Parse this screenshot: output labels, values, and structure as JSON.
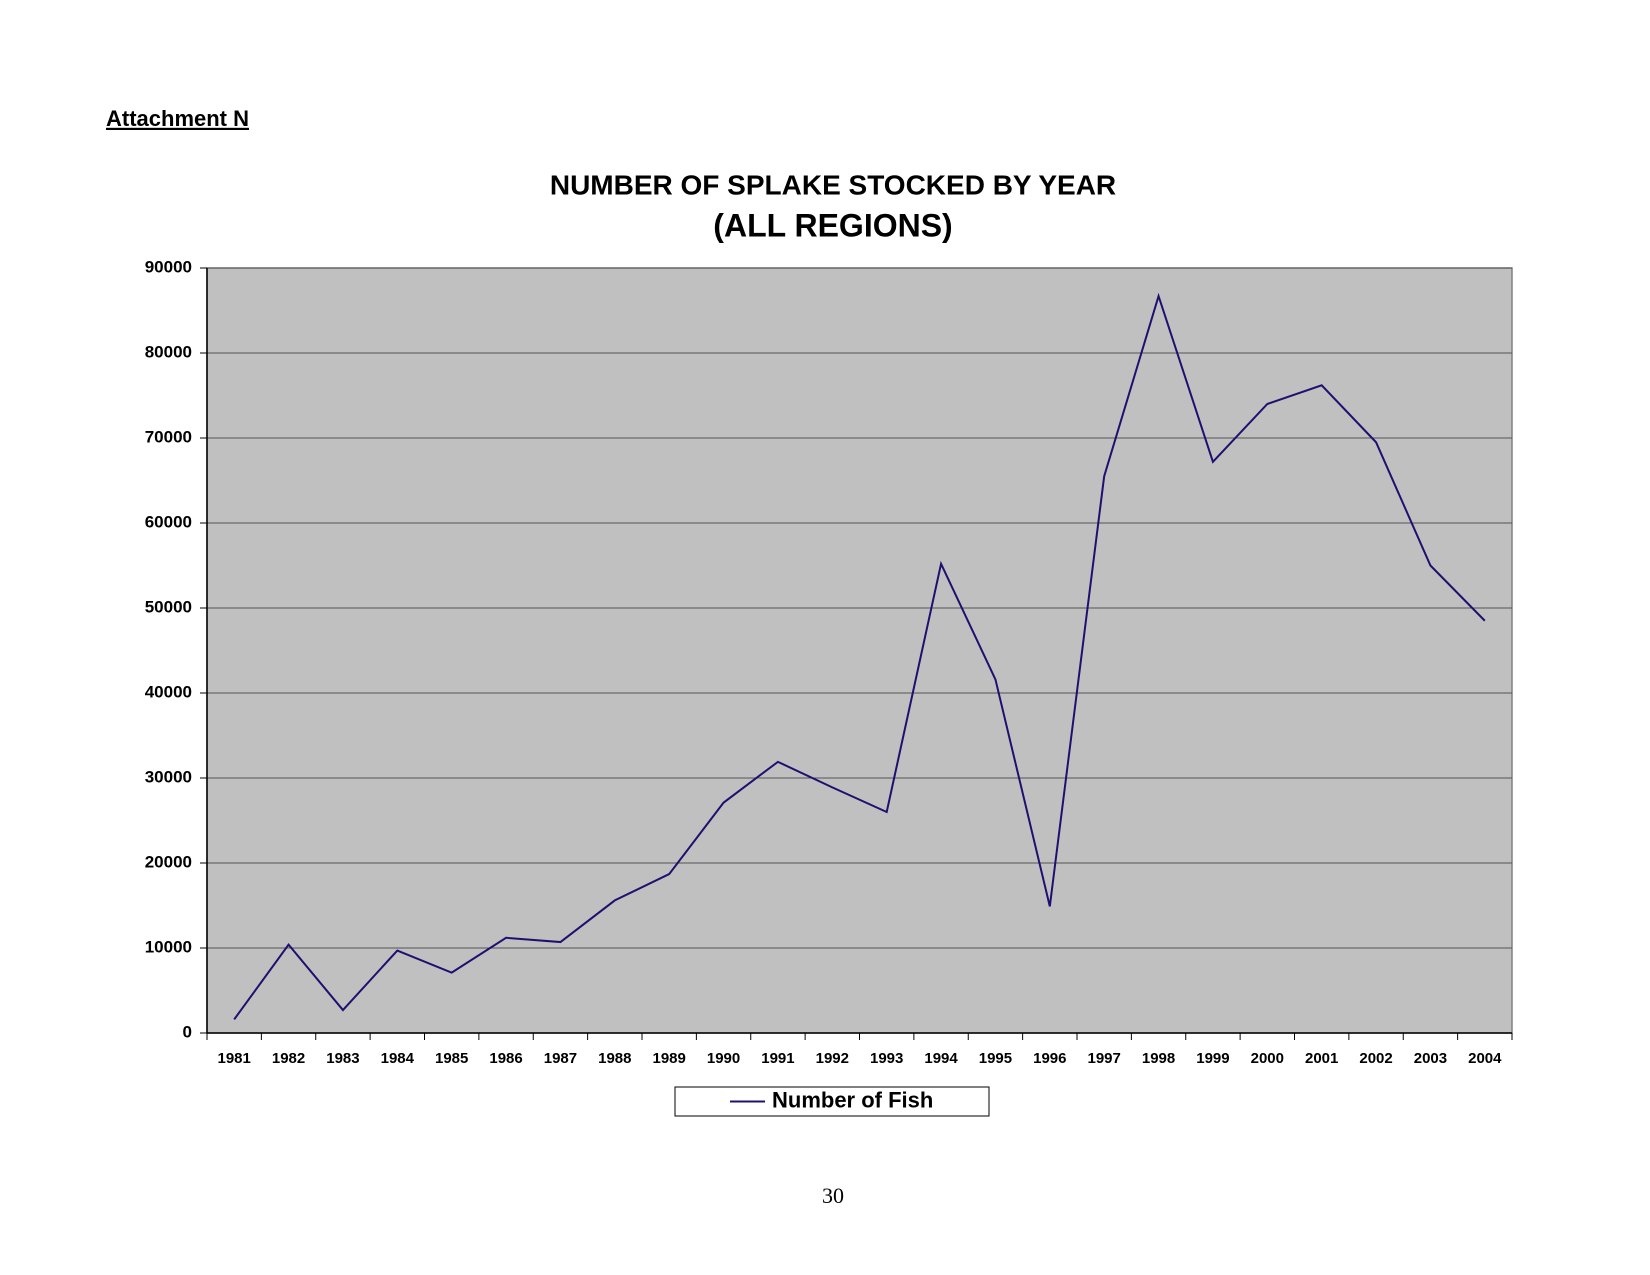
{
  "header": "Attachment N",
  "page_number": "30",
  "chart_data": {
    "type": "line",
    "title": "NUMBER OF SPLAKE STOCKED BY YEAR",
    "subtitle": "(ALL REGIONS)",
    "categories": [
      "1981",
      "1982",
      "1983",
      "1984",
      "1985",
      "1986",
      "1987",
      "1988",
      "1989",
      "1990",
      "1991",
      "1992",
      "1993",
      "1994",
      "1995",
      "1996",
      "1997",
      "1998",
      "1999",
      "2000",
      "2001",
      "2002",
      "2003",
      "2004"
    ],
    "series": [
      {
        "name": "Number of Fish",
        "color": "#1f1070",
        "values": [
          1600,
          10400,
          2700,
          9700,
          7100,
          11200,
          10700,
          15600,
          18700,
          27100,
          31900,
          28900,
          26000,
          55200,
          41600,
          14900,
          65500,
          86700,
          67200,
          74000,
          76200,
          69500,
          55000,
          48500
        ]
      }
    ],
    "ylim": [
      0,
      90000
    ],
    "yticks": [
      0,
      10000,
      20000,
      30000,
      40000,
      50000,
      60000,
      70000,
      80000,
      90000
    ],
    "grid": true,
    "plot_background": "#c0c0c0",
    "legend": "bottom"
  }
}
